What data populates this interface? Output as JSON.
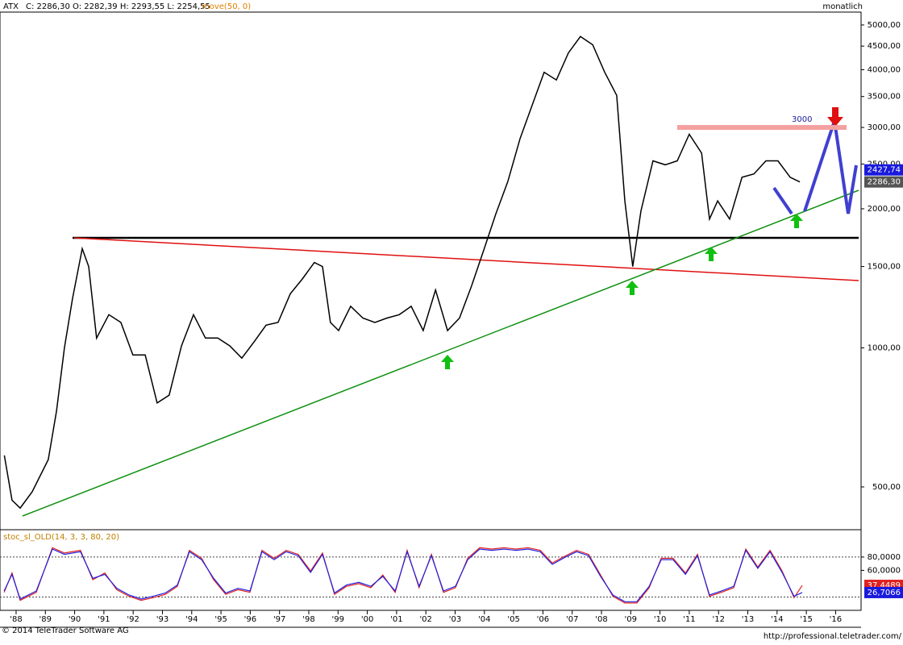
{
  "header": {
    "symbol": "ATX",
    "quote": "C: 2286,30 O: 2282,39 H: 2293,55 L: 2254,55",
    "indicator": "move(50, 0)",
    "period": "monatlich"
  },
  "footer": {
    "copyright": "© 2014 TeleTrader Software AG",
    "url": "http://professional.teletrader.com/"
  },
  "chart_data": [
    {
      "type": "line",
      "log_scale": true,
      "x": [
        1987.6,
        1987.86,
        1988.14,
        1988.55,
        1989.1,
        1989.38,
        1989.65,
        1989.93,
        1990.26,
        1990.48,
        1990.75,
        1991.17,
        1991.58,
        1991.99,
        1992.41,
        1992.82,
        1993.23,
        1993.65,
        1994.06,
        1994.47,
        1994.89,
        1995.3,
        1995.71,
        1996.13,
        1996.54,
        1996.95,
        1997.37,
        1997.78,
        1998.19,
        1998.47,
        1998.74,
        1999.02,
        1999.43,
        1999.85,
        2000.26,
        2000.67,
        2001.09,
        2001.5,
        2001.91,
        2002.33,
        2002.74,
        2003.15,
        2003.56,
        2003.98,
        2004.39,
        2004.8,
        2005.22,
        2005.63,
        2006.04,
        2006.46,
        2006.87,
        2007.28,
        2007.7,
        2008.11,
        2008.52,
        2008.8,
        2009.07,
        2009.35,
        2009.76,
        2010.18,
        2010.59,
        2011.0,
        2011.42,
        2011.69,
        2011.97,
        2012.38,
        2012.8,
        2013.21,
        2013.62,
        2014.03,
        2014.45,
        2014.78
      ],
      "series": [
        {
          "name": "ATX",
          "color": "#000000",
          "values": [
            585,
            468,
            450,
            488,
            573,
            730,
            1000,
            1280,
            1640,
            1500,
            1050,
            1180,
            1135,
            965,
            965,
            760,
            790,
            1010,
            1180,
            1050,
            1050,
            1010,
            950,
            1030,
            1120,
            1135,
            1310,
            1410,
            1530,
            1500,
            1135,
            1090,
            1230,
            1160,
            1135,
            1160,
            1180,
            1230,
            1090,
            1335,
            1090,
            1160,
            1360,
            1630,
            1950,
            2290,
            2840,
            3350,
            3950,
            3800,
            4350,
            4720,
            4530,
            3950,
            3520,
            2080,
            1500,
            1980,
            2540,
            2490,
            2540,
            2900,
            2640,
            1900,
            2080,
            1900,
            2340,
            2380,
            2540,
            2540,
            2340,
            2286.3
          ]
        }
      ],
      "xlim": [
        1987.45,
        2016.87
      ],
      "ylim": [
        404,
        5331
      ],
      "xticks": [
        {
          "value": 1988,
          "label": "'88"
        },
        {
          "value": 1989,
          "label": "'89"
        },
        {
          "value": 1990,
          "label": "'90"
        },
        {
          "value": 1991,
          "label": "'91"
        },
        {
          "value": 1992,
          "label": "'92"
        },
        {
          "value": 1993,
          "label": "'93"
        },
        {
          "value": 1994,
          "label": "'94"
        },
        {
          "value": 1995,
          "label": "'95"
        },
        {
          "value": 1996,
          "label": "'96"
        },
        {
          "value": 1997,
          "label": "'97"
        },
        {
          "value": 1998,
          "label": "'98"
        },
        {
          "value": 1999,
          "label": "'99"
        },
        {
          "value": 2000,
          "label": "'00"
        },
        {
          "value": 2001,
          "label": "'01"
        },
        {
          "value": 2002,
          "label": "'02"
        },
        {
          "value": 2003,
          "label": "'03"
        },
        {
          "value": 2004,
          "label": "'04"
        },
        {
          "value": 2005,
          "label": "'05"
        },
        {
          "value": 2006,
          "label": "'06"
        },
        {
          "value": 2007,
          "label": "'07"
        },
        {
          "value": 2008,
          "label": "'08"
        },
        {
          "value": 2009,
          "label": "'09"
        },
        {
          "value": 2010,
          "label": "'10"
        },
        {
          "value": 2011,
          "label": "'11"
        },
        {
          "value": 2012,
          "label": "'12"
        },
        {
          "value": 2013,
          "label": "'13"
        },
        {
          "value": 2014,
          "label": "'14"
        },
        {
          "value": 2015,
          "label": "'15"
        },
        {
          "value": 2016,
          "label": "'16"
        }
      ],
      "yticks": [
        {
          "value": 500,
          "label": "500,00"
        },
        {
          "value": 1000,
          "label": "1000,00"
        },
        {
          "value": 1500,
          "label": "1500,00"
        },
        {
          "value": 2000,
          "label": "2000,00"
        },
        {
          "value": 2500,
          "label": "2500,00"
        },
        {
          "value": 3000,
          "label": "3000,00"
        },
        {
          "value": 3500,
          "label": "3500,00"
        },
        {
          "value": 4000,
          "label": "4000,00"
        },
        {
          "value": 4500,
          "label": "4500,00"
        },
        {
          "value": 5000,
          "label": "5000,00"
        }
      ],
      "price_tags": [
        {
          "value": 2427.74,
          "label": "2427,74",
          "color": "#1a1adc"
        },
        {
          "value": 2286.3,
          "label": "2286,30",
          "color": "#555555"
        }
      ],
      "annotation": {
        "value": 3000,
        "label": "3000"
      }
    },
    {
      "type": "line",
      "title": "stoc_sl_OLD(14, 3, 3, 80, 20)",
      "x": [
        1987.59,
        1987.86,
        1988.14,
        1988.69,
        1989.24,
        1989.65,
        1990.2,
        1990.62,
        1991.03,
        1991.44,
        1991.86,
        1992.27,
        1992.68,
        1993.1,
        1993.51,
        1993.92,
        1994.34,
        1994.75,
        1995.16,
        1995.58,
        1995.99,
        1996.4,
        1996.82,
        1997.23,
        1997.64,
        1998.06,
        1998.47,
        1998.88,
        1999.29,
        1999.71,
        2000.12,
        2000.53,
        2000.95,
        2001.36,
        2001.77,
        2002.19,
        2002.6,
        2003.01,
        2003.43,
        2003.84,
        2004.25,
        2004.67,
        2005.08,
        2005.49,
        2005.91,
        2006.32,
        2006.73,
        2007.15,
        2007.56,
        2007.97,
        2008.39,
        2008.8,
        2009.21,
        2009.63,
        2010.04,
        2010.45,
        2010.87,
        2011.28,
        2011.69,
        2012.1,
        2012.52,
        2012.93,
        2013.34,
        2013.76,
        2014.17,
        2014.58,
        2014.86
      ],
      "series": [
        {
          "color": "#e02020",
          "values": [
            27,
            56,
            15,
            27,
            94,
            86,
            90,
            46,
            56,
            31,
            21,
            15,
            19,
            24,
            36,
            90,
            78,
            46,
            24,
            31,
            27,
            90,
            78,
            90,
            84,
            59,
            86,
            24,
            36,
            40,
            34,
            53,
            27,
            90,
            34,
            84,
            27,
            34,
            78,
            94,
            92,
            94,
            92,
            94,
            90,
            71,
            81,
            90,
            84,
            53,
            21,
            11,
            11,
            34,
            78,
            78,
            56,
            84,
            21,
            27,
            34,
            92,
            65,
            90,
            59,
            19,
            37.4489
          ]
        },
        {
          "color": "#2020e0",
          "values": [
            29,
            54,
            17,
            29,
            92,
            84,
            88,
            48,
            54,
            33,
            23,
            17,
            21,
            26,
            38,
            88,
            76,
            48,
            26,
            33,
            29,
            88,
            76,
            88,
            82,
            57,
            84,
            26,
            38,
            42,
            36,
            51,
            29,
            88,
            36,
            82,
            29,
            36,
            76,
            92,
            90,
            92,
            90,
            92,
            88,
            69,
            79,
            88,
            82,
            51,
            23,
            13,
            13,
            36,
            76,
            76,
            54,
            82,
            23,
            29,
            36,
            90,
            63,
            88,
            57,
            21,
            26.7066
          ]
        }
      ],
      "xlim": [
        1987.45,
        2016.87
      ],
      "ylim": [
        0,
        121
      ],
      "yticks": [
        {
          "value": 80,
          "label": "80,0000"
        },
        {
          "value": 60,
          "label": "60,0000"
        }
      ],
      "levels": [
        80,
        20
      ],
      "tags": [
        {
          "value": 37.4489,
          "label": "37,4489",
          "color": "#e02020"
        },
        {
          "value": 26.7066,
          "label": "26,7066",
          "color": "#1a1adc"
        }
      ]
    }
  ]
}
